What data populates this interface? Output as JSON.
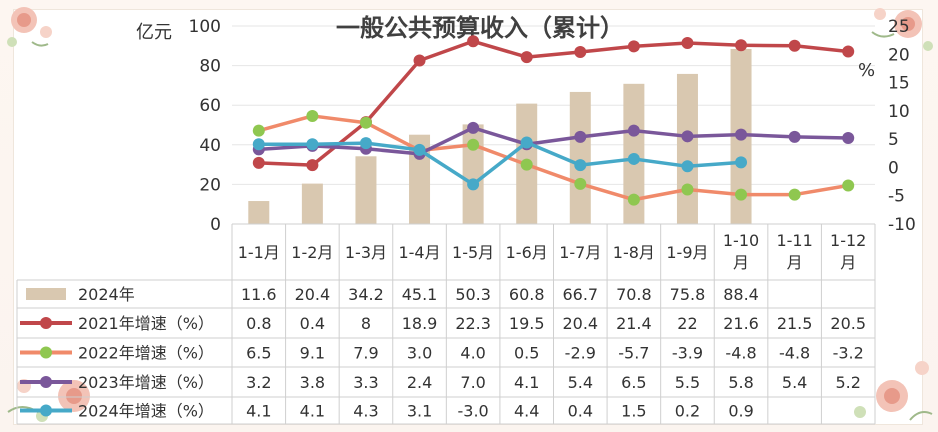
{
  "chart_data": {
    "type": "bar+line",
    "title": "一般公共预算收入（累计）",
    "left_axis_label": "亿元",
    "right_axis_label": "%",
    "left_ylim": [
      0,
      100
    ],
    "left_ticks": [
      "0",
      "20",
      "40",
      "60",
      "80",
      "100"
    ],
    "right_ylim": [
      -10,
      25
    ],
    "right_ticks": [
      "-10",
      "-5",
      "0",
      "5",
      "10",
      "15",
      "20",
      "25"
    ],
    "grid": "horizontal",
    "categories": [
      "1-1月",
      "1-2月",
      "1-3月",
      "1-4月",
      "1-5月",
      "1-6月",
      "1-7月",
      "1-8月",
      "1-9月",
      "1-10月",
      "1-11月",
      "1-12月"
    ],
    "bar_series": {
      "name": "2024年",
      "color": "#d9c8b0",
      "values": [
        11.6,
        20.4,
        34.2,
        45.1,
        50.3,
        60.8,
        66.7,
        70.8,
        75.8,
        88.4,
        null,
        null
      ],
      "labels": [
        "11.6",
        "20.4",
        "34.2",
        "45.1",
        "50.3",
        "60.8",
        "66.7",
        "70.8",
        "75.8",
        "88.4",
        "",
        ""
      ]
    },
    "line_series": [
      {
        "name": "2021年增速（%）",
        "color": "#c0474a",
        "values": [
          0.8,
          0.4,
          8,
          18.9,
          22.3,
          19.5,
          20.4,
          21.4,
          22,
          21.6,
          21.5,
          20.5
        ],
        "labels": [
          "0.8",
          "0.4",
          "8",
          "18.9",
          "22.3",
          "19.5",
          "20.4",
          "21.4",
          "22",
          "21.6",
          "21.5",
          "20.5"
        ]
      },
      {
        "name": "2022年增速（%）",
        "color": "#f08a6a",
        "marker_color": "#8fc750",
        "values": [
          6.5,
          9.1,
          7.9,
          3.0,
          4.0,
          0.5,
          -2.9,
          -5.7,
          -3.9,
          -4.8,
          -4.8,
          -3.2
        ],
        "labels": [
          "6.5",
          "9.1",
          "7.9",
          "3.0",
          "4.0",
          "0.5",
          "-2.9",
          "-5.7",
          "-3.9",
          "-4.8",
          "-4.8",
          "-3.2"
        ]
      },
      {
        "name": "2023年增速（%）",
        "color": "#7a579a",
        "values": [
          3.2,
          3.8,
          3.3,
          2.4,
          7.0,
          4.1,
          5.4,
          6.5,
          5.5,
          5.8,
          5.4,
          5.2
        ],
        "labels": [
          "3.2",
          "3.8",
          "3.3",
          "2.4",
          "7.0",
          "4.1",
          "5.4",
          "6.5",
          "5.5",
          "5.8",
          "5.4",
          "5.2"
        ]
      },
      {
        "name": "2024年增速（%）",
        "color": "#46a9c8",
        "values": [
          4.1,
          4.1,
          4.3,
          3.1,
          -3.0,
          4.4,
          0.4,
          1.5,
          0.2,
          0.9,
          null,
          null
        ],
        "labels": [
          "4.1",
          "4.1",
          "4.3",
          "3.1",
          "-3.0",
          "4.4",
          "0.4",
          "1.5",
          "0.2",
          "0.9",
          "",
          ""
        ]
      }
    ]
  }
}
